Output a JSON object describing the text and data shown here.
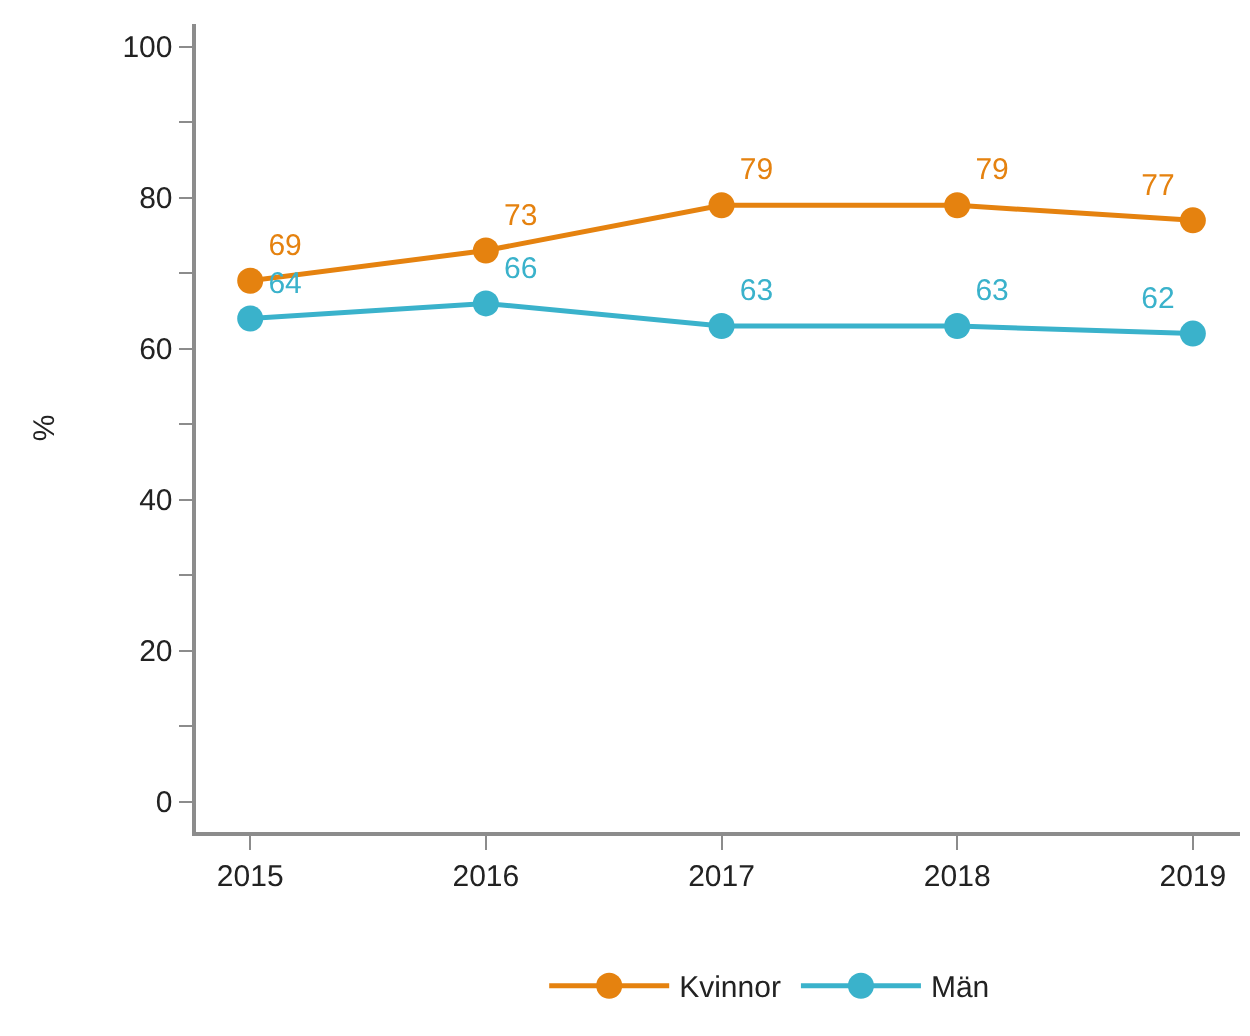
{
  "chart_data": {
    "type": "line",
    "ylabel": "%",
    "x": [
      2015,
      2016,
      2017,
      2018,
      2019
    ],
    "series": [
      {
        "name": "Kvinnor",
        "color": "#e5820f",
        "values": [
          69,
          73,
          79,
          79,
          77
        ]
      },
      {
        "name": "Män",
        "color": "#3ab2cb",
        "values": [
          64,
          66,
          63,
          63,
          62
        ]
      }
    ],
    "xlim": [
      2014.77,
      2019.2
    ],
    "xticks": [
      2015,
      2016,
      2017,
      2018,
      2019
    ],
    "ylim": [
      -4,
      103
    ],
    "yticks": [
      0,
      {
        "value": 10,
        "label": null
      },
      20,
      {
        "value": 30,
        "label": null
      },
      40,
      {
        "value": 50,
        "label": null
      },
      60,
      {
        "value": 70,
        "label": null
      },
      80,
      {
        "value": 90,
        "label": null
      },
      100
    ],
    "data_labels": true,
    "grid": false,
    "legend": "bottom",
    "marker": "circle",
    "line_style": "solid"
  }
}
